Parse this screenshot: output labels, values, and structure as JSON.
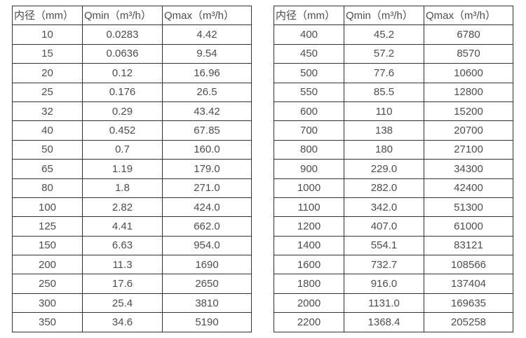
{
  "colors": {
    "background": "#ffffff",
    "border": "#333333",
    "text": "#4d4d4d"
  },
  "tables": [
    {
      "name": "small-diameter-table",
      "headers": [
        "内径（mm）",
        "Qmin（m³/h）",
        "Qmax（m³/h）"
      ],
      "rows": [
        [
          "10",
          "0.0283",
          "4.42"
        ],
        [
          "15",
          "0.0636",
          "9.54"
        ],
        [
          "20",
          "0.12",
          "16.96"
        ],
        [
          "25",
          "0.176",
          "26.5"
        ],
        [
          "32",
          "0.29",
          "43.42"
        ],
        [
          "40",
          "0.452",
          "67.85"
        ],
        [
          "50",
          "0.7",
          "160.0"
        ],
        [
          "65",
          "1.19",
          "179.0"
        ],
        [
          "80",
          "1.8",
          "271.0"
        ],
        [
          "100",
          "2.82",
          "424.0"
        ],
        [
          "125",
          "4.41",
          "662.0"
        ],
        [
          "150",
          "6.63",
          "954.0"
        ],
        [
          "200",
          "11.3",
          "1690"
        ],
        [
          "250",
          "17.6",
          "2650"
        ],
        [
          "300",
          "25.4",
          "3810"
        ],
        [
          "350",
          "34.6",
          "5190"
        ]
      ]
    },
    {
      "name": "large-diameter-table",
      "headers": [
        "内径（mm）",
        "Qmin（m³/h）",
        "Qmax（m³/h）"
      ],
      "rows": [
        [
          "400",
          "45.2",
          "6780"
        ],
        [
          "450",
          "57.2",
          "8570"
        ],
        [
          "500",
          "77.6",
          "10600"
        ],
        [
          "550",
          "85.5",
          "12800"
        ],
        [
          "600",
          "110",
          "15200"
        ],
        [
          "700",
          "138",
          "20700"
        ],
        [
          "800",
          "180",
          "27100"
        ],
        [
          "900",
          "229.0",
          "34300"
        ],
        [
          "1000",
          "282.0",
          "42400"
        ],
        [
          "1100",
          "342.0",
          "51300"
        ],
        [
          "1200",
          "407.0",
          "61000"
        ],
        [
          "1400",
          "554.1",
          "83121"
        ],
        [
          "1600",
          "732.7",
          "108566"
        ],
        [
          "1800",
          "916.0",
          "137404"
        ],
        [
          "2000",
          "1131.0",
          "169635"
        ],
        [
          "2200",
          "1368.4",
          "205258"
        ]
      ]
    }
  ]
}
